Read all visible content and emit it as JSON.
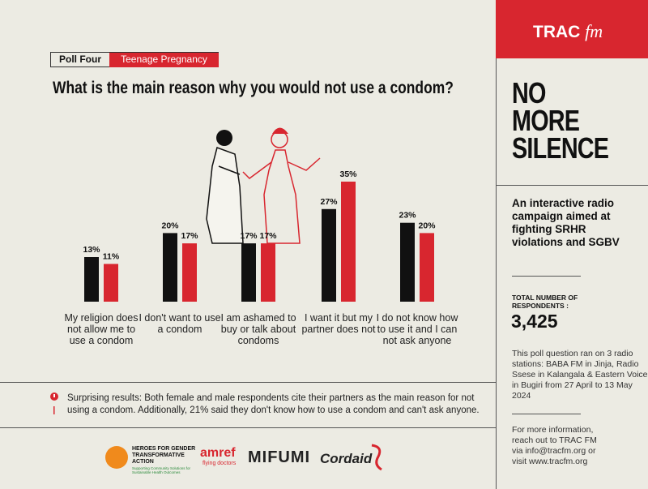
{
  "brand": {
    "name": "TRAC",
    "suffix": "fm"
  },
  "poll": {
    "label": "Poll Four",
    "topic": "Teenage Pregnancy"
  },
  "chart_data": {
    "type": "bar",
    "title": "What is the main reason why you would not use a condom?",
    "categories": [
      "My religion does not allow me to use a condom",
      "I don't want to use a condom",
      "I am ashamed to buy or talk about condoms",
      "I want it but my partner does not",
      "I do not know how to use it and I can not ask anyone"
    ],
    "series": [
      {
        "color": "#111111",
        "values": [
          13,
          20,
          17,
          27,
          23
        ],
        "value_labels": [
          "13%",
          "20%",
          "17%",
          "27%",
          "23%"
        ]
      },
      {
        "color": "#d8262f",
        "values": [
          11,
          17,
          17,
          35,
          20
        ],
        "value_labels": [
          "11%",
          "17%",
          "17%",
          "35%",
          "20%"
        ]
      }
    ]
  },
  "campaign": {
    "title_lines": [
      "NO",
      "MORE",
      "SILENCE"
    ],
    "description": "An interactive radio campaign aimed at fighting SRHR violations and SGBV"
  },
  "respondents": {
    "label": "TOTAL NUMBER OF RESPONDENTS :",
    "value": "3,425"
  },
  "poll_note": "This poll question ran on 3 radio stations: BABA FM in Jinja, Radio Ssese in Kalangala & Eastern Voice in Bugiri from 27 April to 13 May 2024",
  "note": "Surprising results: Both female and male respondents cite their partners as the main reason for not using a condom. Additionally, 21% said they don't know how to use a condom and can't ask anyone.",
  "contact": "For more information, reach out to TRAC FM via info@tracfm.org or visit www.tracfm.org",
  "logos": {
    "heroes": "HEROES FOR GENDER TRANSFORMATIVE ACTION",
    "heroes_tagline": "Supporting Community Solutions for Sustainable Health Outcomes",
    "amref": "amref",
    "amref_tagline": "flying doctors",
    "mifumi": "MIFUMI",
    "cordaid": "Cordaid"
  }
}
